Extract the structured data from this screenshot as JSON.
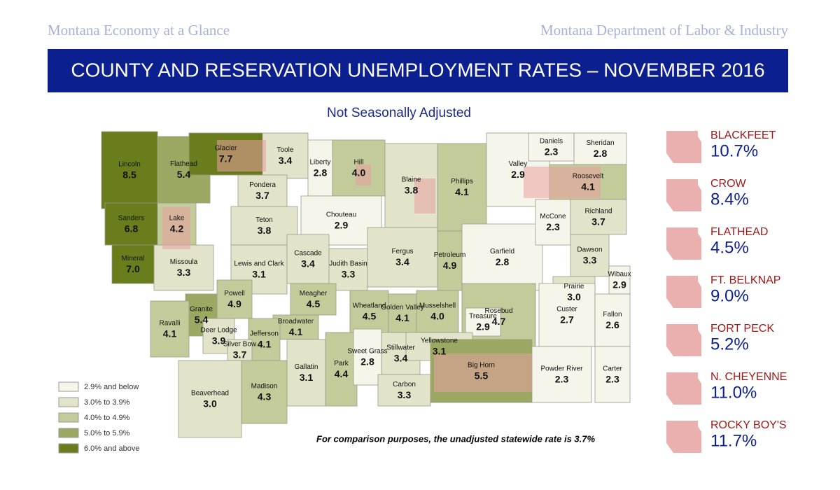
{
  "header": {
    "left": "Montana Economy at a Glance",
    "right": "Montana Department of Labor & Industry"
  },
  "title": "COUNTY AND RESERVATION UNEMPLOYMENT RATES – NOVEMBER 2016",
  "subtitle": "Not Seasonally Adjusted",
  "legend": [
    {
      "label": "2.9% and below",
      "color": "#f6f5ea"
    },
    {
      "label": "3.0% to 3.9%",
      "color": "#e2e3c9"
    },
    {
      "label": "4.0% to 4.9%",
      "color": "#c4cb9a"
    },
    {
      "label": "5.0% to 5.9%",
      "color": "#9aa862"
    },
    {
      "label": "6.0% and above",
      "color": "#6a7d1c"
    }
  ],
  "counties": [
    {
      "name": "Lincoln",
      "rate": "8.5",
      "color": "#6a7d1c"
    },
    {
      "name": "Flathead",
      "rate": "5.4",
      "color": "#9aa862"
    },
    {
      "name": "Glacier",
      "rate": "7.7",
      "color": "#6a7d1c"
    },
    {
      "name": "Toole",
      "rate": "3.4",
      "color": "#e2e3c9"
    },
    {
      "name": "Liberty",
      "rate": "2.8",
      "color": "#f6f5ea"
    },
    {
      "name": "Hill",
      "rate": "4.0",
      "color": "#c4cb9a"
    },
    {
      "name": "Blaine",
      "rate": "3.8",
      "color": "#e2e3c9"
    },
    {
      "name": "Phillips",
      "rate": "4.1",
      "color": "#c4cb9a"
    },
    {
      "name": "Valley",
      "rate": "2.9",
      "color": "#f6f5ea"
    },
    {
      "name": "Daniels",
      "rate": "2.3",
      "color": "#f6f5ea"
    },
    {
      "name": "Sheridan",
      "rate": "2.8",
      "color": "#f6f5ea"
    },
    {
      "name": "Roosevelt",
      "rate": "4.1",
      "color": "#c4cb9a"
    },
    {
      "name": "Sanders",
      "rate": "6.8",
      "color": "#6a7d1c"
    },
    {
      "name": "Lake",
      "rate": "4.2",
      "color": "#c4cb9a"
    },
    {
      "name": "Pondera",
      "rate": "3.7",
      "color": "#e2e3c9"
    },
    {
      "name": "Teton",
      "rate": "3.8",
      "color": "#e2e3c9"
    },
    {
      "name": "Chouteau",
      "rate": "2.9",
      "color": "#f6f5ea"
    },
    {
      "name": "Mineral",
      "rate": "7.0",
      "color": "#6a7d1c"
    },
    {
      "name": "Missoula",
      "rate": "3.3",
      "color": "#e2e3c9"
    },
    {
      "name": "Lewis and Clark",
      "rate": "3.1",
      "color": "#e2e3c9"
    },
    {
      "name": "Cascade",
      "rate": "3.4",
      "color": "#e2e3c9"
    },
    {
      "name": "Judith Basin",
      "rate": "3.3",
      "color": "#e2e3c9"
    },
    {
      "name": "Fergus",
      "rate": "3.4",
      "color": "#e2e3c9"
    },
    {
      "name": "Petroleum",
      "rate": "4.9",
      "color": "#c4cb9a"
    },
    {
      "name": "Garfield",
      "rate": "2.8",
      "color": "#f6f5ea"
    },
    {
      "name": "McCone",
      "rate": "2.3",
      "color": "#f6f5ea"
    },
    {
      "name": "Richland",
      "rate": "3.7",
      "color": "#e2e3c9"
    },
    {
      "name": "Dawson",
      "rate": "3.3",
      "color": "#e2e3c9"
    },
    {
      "name": "Prairie",
      "rate": "3.0",
      "color": "#e2e3c9"
    },
    {
      "name": "Wibaux",
      "rate": "2.9",
      "color": "#f6f5ea"
    },
    {
      "name": "Granite",
      "rate": "5.4",
      "color": "#9aa862"
    },
    {
      "name": "Powell",
      "rate": "4.9",
      "color": "#c4cb9a"
    },
    {
      "name": "Ravalli",
      "rate": "4.1",
      "color": "#c4cb9a"
    },
    {
      "name": "Meagher",
      "rate": "4.5",
      "color": "#c4cb9a"
    },
    {
      "name": "Broadwater",
      "rate": "4.1",
      "color": "#c4cb9a"
    },
    {
      "name": "Deer Lodge",
      "rate": "3.9",
      "color": "#e2e3c9"
    },
    {
      "name": "Jefferson",
      "rate": "4.1",
      "color": "#c4cb9a"
    },
    {
      "name": "Silver Bow",
      "rate": "3.7",
      "color": "#e2e3c9"
    },
    {
      "name": "Wheatland",
      "rate": "4.5",
      "color": "#c4cb9a"
    },
    {
      "name": "Golden Valley",
      "rate": "4.1",
      "color": "#c4cb9a"
    },
    {
      "name": "Musselshell",
      "rate": "4.0",
      "color": "#c4cb9a"
    },
    {
      "name": "Rosebud",
      "rate": "4.7",
      "color": "#c4cb9a"
    },
    {
      "name": "Custer",
      "rate": "2.7",
      "color": "#f6f5ea"
    },
    {
      "name": "Fallon",
      "rate": "2.6",
      "color": "#f6f5ea"
    },
    {
      "name": "Treasure",
      "rate": "2.9",
      "color": "#f6f5ea"
    },
    {
      "name": "Gallatin",
      "rate": "3.1",
      "color": "#e2e3c9"
    },
    {
      "name": "Park",
      "rate": "4.4",
      "color": "#c4cb9a"
    },
    {
      "name": "Sweet Grass",
      "rate": "2.8",
      "color": "#f6f5ea"
    },
    {
      "name": "Stillwater",
      "rate": "3.4",
      "color": "#e2e3c9"
    },
    {
      "name": "Yellowstone",
      "rate": "3.1",
      "color": "#e2e3c9"
    },
    {
      "name": "Carbon",
      "rate": "3.3",
      "color": "#e2e3c9"
    },
    {
      "name": "Big Horn",
      "rate": "5.5",
      "color": "#9aa862"
    },
    {
      "name": "Powder River",
      "rate": "2.3",
      "color": "#f6f5ea"
    },
    {
      "name": "Carter",
      "rate": "2.3",
      "color": "#f6f5ea"
    },
    {
      "name": "Beaverhead",
      "rate": "3.0",
      "color": "#e2e3c9"
    },
    {
      "name": "Madison",
      "rate": "4.3",
      "color": "#c4cb9a"
    }
  ],
  "reservations": [
    {
      "name": "BLACKFEET",
      "rate": "10.7%"
    },
    {
      "name": "CROW",
      "rate": "8.4%"
    },
    {
      "name": "FLATHEAD",
      "rate": "4.5%"
    },
    {
      "name": "FT. BELKNAP",
      "rate": "9.0%"
    },
    {
      "name": "FORT PECK",
      "rate": "5.2%"
    },
    {
      "name": "N. CHEYENNE",
      "rate": "11.0%"
    },
    {
      "name": "ROCKY BOY'S",
      "rate": "11.7%"
    }
  ],
  "note": "For comparison purposes, the unadjusted statewide rate is 3.7%"
}
